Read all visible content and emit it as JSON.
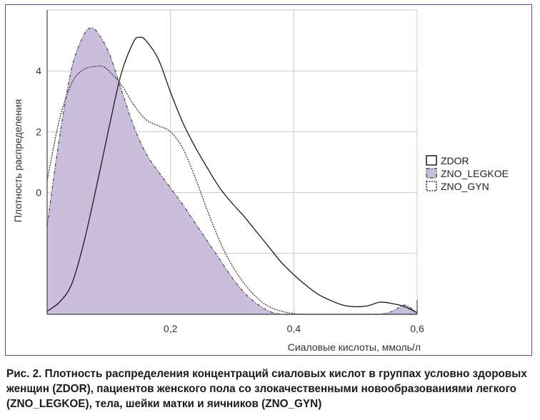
{
  "chart_data": {
    "type": "area",
    "xlabel": "Сиаловые кислоты, ммоль/л",
    "ylabel": "Плотность распределения",
    "xlim": [
      0.0,
      0.6
    ],
    "ylim": [
      -4.0,
      6.0
    ],
    "x_ticks": [
      {
        "value": 0.2,
        "label": "0,2"
      },
      {
        "value": 0.4,
        "label": "0,4"
      },
      {
        "value": 0.6,
        "label": "0,6"
      }
    ],
    "y_ticks": [
      {
        "value": 0,
        "label": "0"
      },
      {
        "value": 2,
        "label": "2"
      },
      {
        "value": 4,
        "label": "4"
      }
    ],
    "grid": true,
    "legend_position": "right",
    "series": [
      {
        "name": "ZDOR",
        "style": "solid",
        "color": "#1a1a1a",
        "fill": "none",
        "x": [
          0.0,
          0.02,
          0.04,
          0.06,
          0.08,
          0.1,
          0.12,
          0.14,
          0.15,
          0.16,
          0.18,
          0.2,
          0.22,
          0.24,
          0.26,
          0.28,
          0.3,
          0.32,
          0.34,
          0.36,
          0.38,
          0.4,
          0.42,
          0.44,
          0.46,
          0.48,
          0.5,
          0.52,
          0.54,
          0.56,
          0.58,
          0.6
        ],
        "y": [
          -3.9,
          -3.6,
          -3.0,
          -1.6,
          0.2,
          2.1,
          3.9,
          4.95,
          5.1,
          5.0,
          4.4,
          3.3,
          2.3,
          1.5,
          0.8,
          0.15,
          -0.35,
          -0.8,
          -1.3,
          -1.8,
          -2.3,
          -2.7,
          -3.05,
          -3.35,
          -3.55,
          -3.7,
          -3.75,
          -3.72,
          -3.6,
          -3.65,
          -3.75,
          -3.95
        ]
      },
      {
        "name": "ZNO_LEGKOE",
        "style": "dash-dot",
        "color": "#55505f",
        "fill": "#cbbedd",
        "x": [
          0.0,
          0.02,
          0.04,
          0.06,
          0.07,
          0.08,
          0.1,
          0.12,
          0.14,
          0.16,
          0.18,
          0.2,
          0.22,
          0.24,
          0.26,
          0.28,
          0.3,
          0.32,
          0.34,
          0.36,
          0.38,
          0.4,
          0.42,
          0.44,
          0.46,
          0.48,
          0.5,
          0.52,
          0.54,
          0.56,
          0.58,
          0.6
        ],
        "y": [
          -1.1,
          1.8,
          4.1,
          5.2,
          5.4,
          5.3,
          4.6,
          3.4,
          2.2,
          1.3,
          0.7,
          0.15,
          -0.4,
          -1.0,
          -1.6,
          -2.2,
          -2.8,
          -3.3,
          -3.65,
          -3.9,
          -4.0,
          -4.0,
          -4.0,
          -4.0,
          -4.0,
          -4.0,
          -4.0,
          -4.0,
          -4.0,
          -3.9,
          -3.7,
          -3.95
        ]
      },
      {
        "name": "ZNO_GYN",
        "style": "dotted",
        "color": "#333333",
        "fill": "none",
        "x": [
          0.0,
          0.02,
          0.04,
          0.06,
          0.08,
          0.09,
          0.1,
          0.12,
          0.14,
          0.16,
          0.18,
          0.2,
          0.22,
          0.24,
          0.26,
          0.28,
          0.3,
          0.32,
          0.34,
          0.36,
          0.38,
          0.4,
          0.42,
          0.44,
          0.46,
          0.48,
          0.5,
          0.52,
          0.54,
          0.56,
          0.58,
          0.6
        ],
        "y": [
          0.4,
          2.4,
          3.6,
          4.05,
          4.15,
          4.15,
          4.0,
          3.55,
          2.9,
          2.4,
          2.2,
          2.0,
          1.45,
          0.5,
          -0.6,
          -1.6,
          -2.4,
          -3.0,
          -3.45,
          -3.75,
          -3.9,
          -3.98,
          -4.0,
          -4.0,
          -4.0,
          -4.0,
          -4.0,
          -4.0,
          -4.0,
          -4.0,
          -4.0,
          -4.0
        ]
      }
    ]
  },
  "caption": {
    "text": "Рис. 2. Плотность распределения концентраций сиаловых кислот в группах условно здоровых женщин (ZDOR), пациентов женского пола со злокачественными новообра­зованиями легкого (ZNO_LEGKOE), тела, шейки матки и яичников (ZNO_GYN)"
  }
}
